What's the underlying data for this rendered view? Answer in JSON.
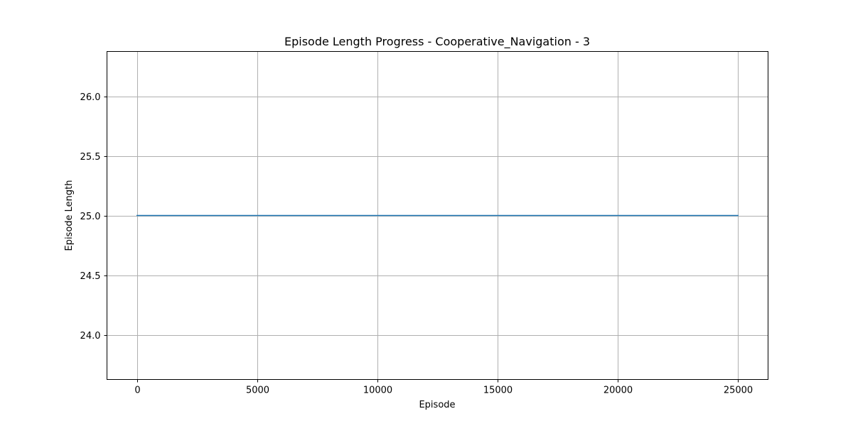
{
  "chart_data": {
    "type": "line",
    "title": "Episode Length Progress - Cooperative_Navigation - 3",
    "xlabel": "Episode",
    "ylabel": "Episode Length",
    "xlim": [
      -1250,
      26250
    ],
    "ylim": [
      23.625,
      26.375
    ],
    "x_ticks": [
      0,
      5000,
      10000,
      15000,
      20000,
      25000
    ],
    "x_tick_labels": [
      "0",
      "5000",
      "10000",
      "15000",
      "20000",
      "25000"
    ],
    "y_ticks": [
      24.0,
      24.5,
      25.0,
      25.5,
      26.0
    ],
    "y_tick_labels": [
      "24.0",
      "24.5",
      "25.0",
      "25.5",
      "26.0"
    ],
    "grid": true,
    "legend": null,
    "series": [
      {
        "color": "#1f77b4",
        "x": [
          0,
          25000
        ],
        "values": [
          25.0,
          25.0
        ]
      }
    ]
  }
}
